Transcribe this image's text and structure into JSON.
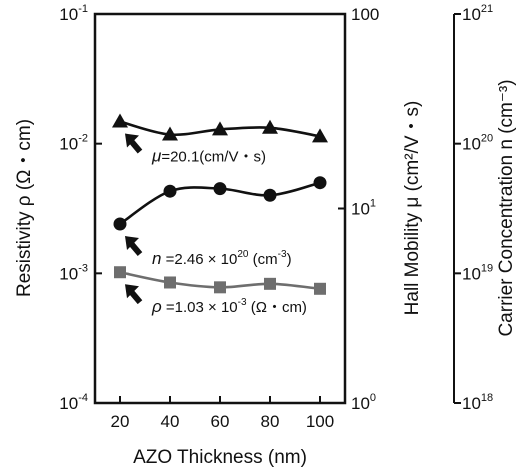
{
  "chart_data": {
    "type": "scatter",
    "xlabel": "AZO Thickness (nm)",
    "xlim": [
      10,
      110
    ],
    "x_ticks": [
      "20",
      "40",
      "60",
      "80",
      "100"
    ],
    "x": [
      20,
      40,
      60,
      80,
      100
    ],
    "axes": [
      {
        "side": "left",
        "label": "Resistivity ρ (Ω・cm)",
        "scale": "log",
        "lim": [
          0.0001,
          0.1
        ],
        "ticks": [
          {
            "base": "10",
            "exp": "-1",
            "value": 0.1
          },
          {
            "base": "10",
            "exp": "-2",
            "value": 0.01
          },
          {
            "base": "10",
            "exp": "-3",
            "value": 0.001
          },
          {
            "base": "10",
            "exp": "-4",
            "value": 0.0001
          }
        ]
      },
      {
        "side": "right",
        "label": "Hall Mobility μ (cm²/V・s)",
        "scale": "log",
        "lim": [
          1,
          100
        ],
        "ticks": [
          {
            "base": "100",
            "exp": "",
            "value": 100
          },
          {
            "base": "10",
            "exp": "1",
            "value": 10
          },
          {
            "base": "10",
            "exp": "0",
            "value": 1
          }
        ]
      },
      {
        "side": "far-right",
        "label": "Carrier Concentration n (cm⁻³)",
        "scale": "log",
        "lim": [
          1e+18,
          1e+21
        ],
        "ticks": [
          {
            "base": "10",
            "exp": "21",
            "value": 1e+21
          },
          {
            "base": "10",
            "exp": "20",
            "value": 1e+20
          },
          {
            "base": "10",
            "exp": "19",
            "value": 1e+19
          },
          {
            "base": "10",
            "exp": "18",
            "value": 1e+18
          }
        ]
      }
    ],
    "series": [
      {
        "marker": "circle",
        "color": "#111111",
        "axis": "far-right",
        "values": [
          2.4e+19,
          4.3e+19,
          4.5e+19,
          4e+19,
          5e+19
        ]
      },
      {
        "marker": "triangle",
        "color": "#111111",
        "axis": "right",
        "values": [
          28.0,
          24.0,
          25.5,
          26.0,
          23.5
        ]
      },
      {
        "marker": "square",
        "color": "#6e6e6e",
        "axis": "left",
        "values": [
          0.00102,
          0.00085,
          0.00078,
          0.00083,
          0.00076
        ]
      }
    ],
    "annotations": [
      {
        "parts": [
          "n",
          " =2.46 × 10",
          "20",
          " (cm",
          "-3",
          ")"
        ],
        "arrow_to_series": 0
      },
      {
        "parts": [
          "μ",
          "=20.1(cm/V・s)"
        ],
        "arrow_to_series": 1
      },
      {
        "parts": [
          "ρ",
          " =1.03 × 10",
          "-3",
          " (Ω・cm)"
        ],
        "arrow_to_series": 2
      }
    ],
    "grid": false,
    "legend": "none"
  }
}
